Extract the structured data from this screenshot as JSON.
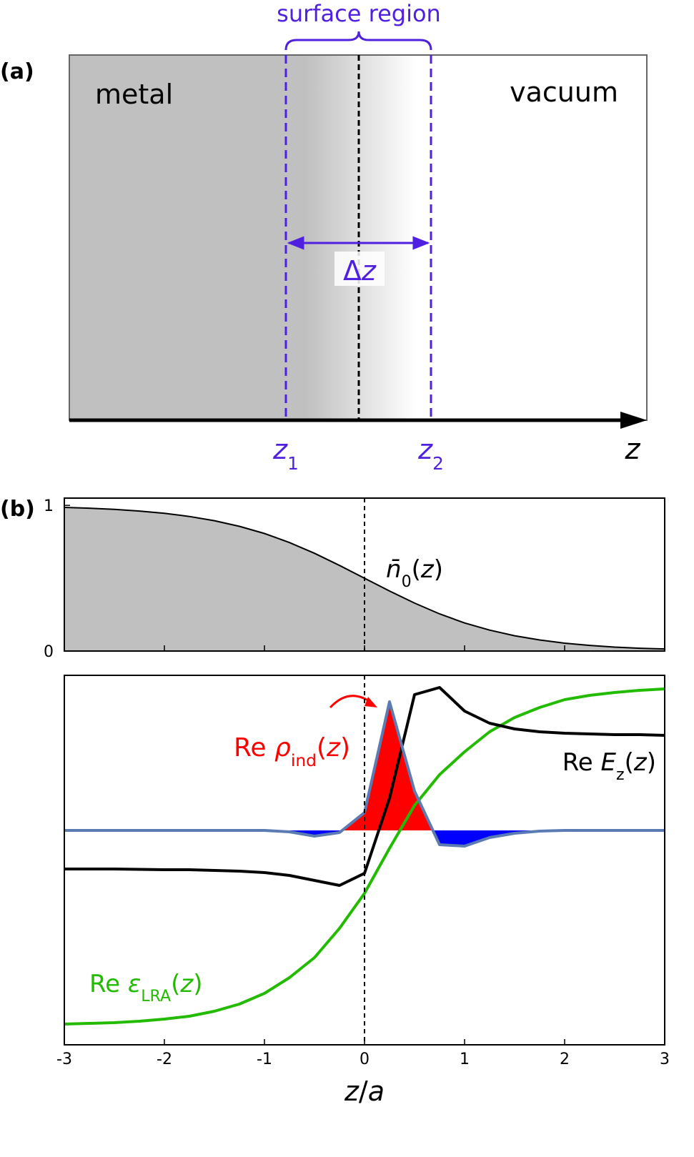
{
  "diagram": {
    "panel_label": "(a)",
    "surface_region": "surface region",
    "metal": "metal",
    "vacuum": "vacuum",
    "delta_z": [
      "Δ",
      "z"
    ],
    "z1": [
      "z",
      "1"
    ],
    "z2": [
      "z",
      "2"
    ],
    "axis": "z"
  },
  "panel_b_label": "(b)",
  "chart_data": [
    {
      "type": "area",
      "x": [
        -3,
        -2.75,
        -2.5,
        -2.25,
        -2,
        -1.75,
        -1.5,
        -1.25,
        -1,
        -0.75,
        -0.5,
        -0.25,
        0,
        0.25,
        0.5,
        0.75,
        1,
        1.25,
        1.5,
        1.75,
        2,
        2.25,
        2.5,
        2.75,
        3
      ],
      "series": [
        {
          "color": "#000000",
          "fill": "#c0c0c0",
          "values": [
            0.986,
            0.981,
            0.973,
            0.961,
            0.946,
            0.924,
            0.895,
            0.856,
            0.807,
            0.745,
            0.671,
            0.588,
            0.5,
            0.412,
            0.329,
            0.255,
            0.193,
            0.144,
            0.105,
            0.076,
            0.054,
            0.039,
            0.027,
            0.019,
            0.014
          ],
          "label": [
            "n̄",
            "0",
            "(",
            "z",
            ")"
          ]
        }
      ],
      "xlim": [
        -3,
        3
      ],
      "ylim": [
        0,
        1.05
      ],
      "yticks": [
        0,
        1
      ]
    },
    {
      "type": "line",
      "x": [
        -3,
        -2.75,
        -2.5,
        -2.25,
        -2,
        -1.75,
        -1.5,
        -1.25,
        -1,
        -0.75,
        -0.5,
        -0.25,
        0,
        0.25,
        0.5,
        0.75,
        1,
        1.25,
        1.5,
        1.75,
        2,
        2.25,
        2.5,
        2.75,
        3
      ],
      "series": [
        {
          "color": "#5b7bb3",
          "positive_color": "#ff0000",
          "negative_color": "#0000ff",
          "values": [
            0,
            0,
            0,
            0,
            0,
            0,
            0,
            0,
            0,
            -0.02,
            -0.08,
            -0.03,
            0.25,
            1.8,
            0.55,
            -0.2,
            -0.22,
            -0.1,
            -0.04,
            -0.01,
            0,
            0,
            0,
            0,
            0
          ],
          "label": [
            "Re ",
            "ρ",
            "ind",
            "(",
            "z",
            ")"
          ],
          "label_color": "#ff0000"
        },
        {
          "color": "#000000",
          "values": [
            -0.54,
            -0.54,
            -0.54,
            -0.545,
            -0.55,
            -0.55,
            -0.56,
            -0.57,
            -0.59,
            -0.63,
            -0.7,
            -0.77,
            -0.6,
            0.45,
            1.9,
            2.0,
            1.67,
            1.5,
            1.42,
            1.38,
            1.36,
            1.35,
            1.34,
            1.34,
            1.33
          ],
          "label": [
            "Re ",
            "E",
            "z",
            "(",
            "z",
            ")"
          ]
        },
        {
          "color": "#22bb00",
          "values": [
            -2.71,
            -2.7,
            -2.69,
            -2.67,
            -2.64,
            -2.6,
            -2.53,
            -2.43,
            -2.28,
            -2.06,
            -1.78,
            -1.37,
            -0.88,
            -0.25,
            0.35,
            0.78,
            1.1,
            1.38,
            1.58,
            1.72,
            1.83,
            1.89,
            1.93,
            1.96,
            1.98
          ],
          "label": [
            "Re ",
            "ε",
            "LRA",
            "(",
            "z",
            ")"
          ]
        }
      ],
      "xlim": [
        -3,
        3
      ],
      "ylim": [
        -3.0,
        2.17
      ],
      "xticks": [
        -3,
        -2,
        -1,
        0,
        1,
        2,
        3
      ],
      "xlabel": [
        "z",
        "/",
        "a"
      ]
    }
  ]
}
